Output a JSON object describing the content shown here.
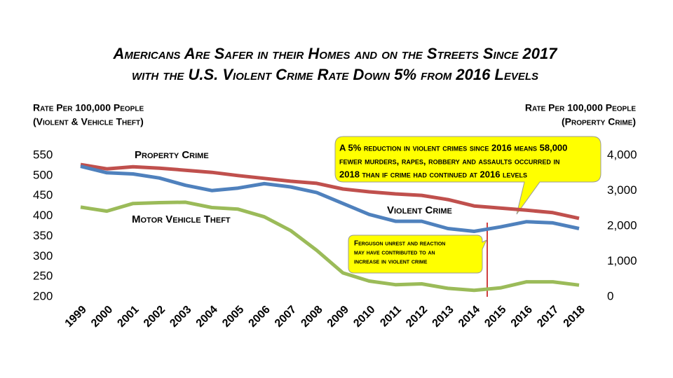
{
  "chart_data": {
    "type": "line",
    "title": [
      "Americans Are Safer in their Homes and on the Streets Since 2017",
      "with the U.S. Violent Crime Rate Down 5% from 2016 Levels"
    ],
    "y_label": [
      "Rate Per 100,000 People",
      "(Violent & Vehicle Theft)"
    ],
    "y2_label": [
      "Rate Per 100,000 People",
      "(Property Crime)"
    ],
    "categories": [
      "1999",
      "2000",
      "2001",
      "2002",
      "2003",
      "2004",
      "2005",
      "2006",
      "2007",
      "2008",
      "2009",
      "2010",
      "2011",
      "2012",
      "2013",
      "2014",
      "2015",
      "2016",
      "2017",
      "2018"
    ],
    "ylim": [
      200,
      550
    ],
    "yticks": [
      200,
      250,
      300,
      350,
      400,
      450,
      500,
      550
    ],
    "y2lim": [
      0,
      4000
    ],
    "y2ticks": [
      0,
      {
        "value": 1000,
        "label": "1,000"
      },
      {
        "value": 2000,
        "label": "2,000"
      },
      {
        "value": 3000,
        "label": "3,000"
      },
      {
        "value": 4000,
        "label": "4,000"
      }
    ],
    "series": [
      {
        "name": "Property Crime",
        "color": "#c0504d",
        "axis": "y2",
        "values": [
          3740,
          3620,
          3680,
          3640,
          3580,
          3520,
          3430,
          3350,
          3270,
          3210,
          3050,
          2970,
          2910,
          2870,
          2750,
          2570,
          2510,
          2450,
          2380,
          2220
        ]
      },
      {
        "name": "Violent Crime",
        "color": "#4f81bd",
        "values": [
          523,
          507,
          504,
          494,
          476,
          463,
          469,
          480,
          472,
          458,
          431,
          404,
          387,
          387,
          369,
          362,
          373,
          386,
          383,
          369
        ]
      },
      {
        "name": "Motor Vehicle Theft",
        "color": "#9bbb59",
        "values": [
          422,
          412,
          431,
          433,
          434,
          421,
          417,
          398,
          364,
          315,
          259,
          239,
          230,
          232,
          221,
          216,
          222,
          237,
          237,
          229
        ]
      }
    ],
    "annotations": [
      {
        "lines": [
          "A 5% reduction in violent crimes since 2016 means 58,000",
          "fewer murders, rapes, robbery and assaults occurred in",
          "2018 than if crime had continued at 2016 levels"
        ]
      },
      {
        "lines": [
          "Ferguson unrest and reaction",
          "may have contributed to an",
          "increase in violent crime"
        ]
      }
    ]
  }
}
